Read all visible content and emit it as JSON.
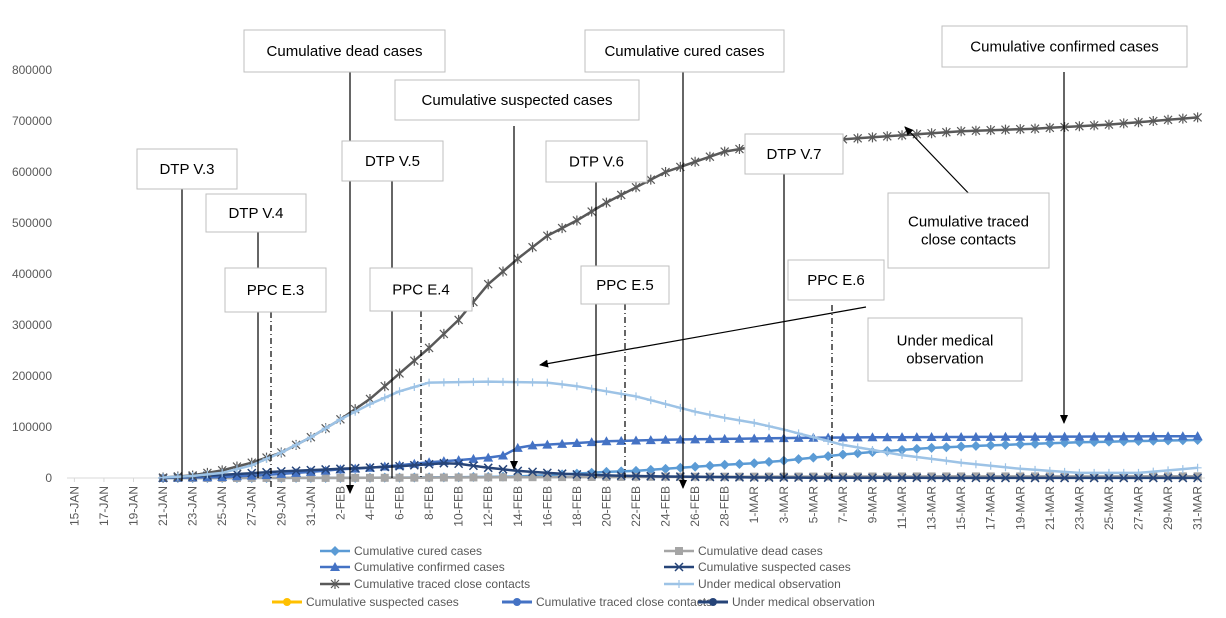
{
  "chart_data": {
    "type": "line",
    "title": "",
    "xlabel": "",
    "ylabel": "",
    "ylim": [
      0,
      800000
    ],
    "yticks": [
      0,
      100000,
      200000,
      300000,
      400000,
      500000,
      600000,
      700000,
      800000
    ],
    "grid": false,
    "x_tick_labels": [
      "15-JAN",
      "17-JAN",
      "19-JAN",
      "21-JAN",
      "23-JAN",
      "25-JAN",
      "27-JAN",
      "29-JAN",
      "31-JAN",
      "2-FEB",
      "4-FEB",
      "6-FEB",
      "8-FEB",
      "10-FEB",
      "12-FEB",
      "14-FEB",
      "16-FEB",
      "18-FEB",
      "20-FEB",
      "22-FEB",
      "24-FEB",
      "26-FEB",
      "28-FEB",
      "1-MAR",
      "3-MAR",
      "5-MAR",
      "7-MAR",
      "9-MAR",
      "11-MAR",
      "13-MAR",
      "15-MAR",
      "17-MAR",
      "19-MAR",
      "21-MAR",
      "23-MAR",
      "25-MAR",
      "27-MAR",
      "29-MAR",
      "31-MAR"
    ],
    "x_start": "15-JAN",
    "x_end": "31-MAR",
    "first_data_day": "21-JAN",
    "series": [
      {
        "name": "Cumulative cured cases",
        "color": "#5B9BD5",
        "marker": "diamond",
        "key_points": [
          [
            6,
            0
          ],
          [
            18,
            200
          ],
          [
            26,
            1500
          ],
          [
            30,
            3000
          ],
          [
            33,
            7000
          ],
          [
            36,
            12000
          ],
          [
            38,
            14000
          ],
          [
            40,
            18000
          ],
          [
            42,
            22000
          ],
          [
            44,
            26000
          ],
          [
            46,
            29000
          ],
          [
            48,
            34000
          ],
          [
            50,
            40000
          ],
          [
            52,
            46000
          ],
          [
            54,
            51000
          ],
          [
            56,
            55000
          ],
          [
            58,
            59000
          ],
          [
            61,
            63000
          ],
          [
            64,
            66000
          ],
          [
            68,
            70000
          ],
          [
            72,
            72500
          ],
          [
            76,
            74500
          ]
        ]
      },
      {
        "name": "Cumulative dead cases",
        "color": "#A5A5A5",
        "marker": "square",
        "key_points": [
          [
            6,
            0
          ],
          [
            20,
            300
          ],
          [
            30,
            1500
          ],
          [
            40,
            2400
          ],
          [
            52,
            2900
          ],
          [
            60,
            3100
          ],
          [
            76,
            3300
          ]
        ]
      },
      {
        "name": "Cumulative confirmed cases",
        "color": "#4472C4",
        "marker": "triangle",
        "key_points": [
          [
            6,
            300
          ],
          [
            10,
            2000
          ],
          [
            13,
            6000
          ],
          [
            16,
            12000
          ],
          [
            18,
            17000
          ],
          [
            20,
            20000
          ],
          [
            22,
            25000
          ],
          [
            24,
            31000
          ],
          [
            26,
            35000
          ],
          [
            28,
            40000
          ],
          [
            29,
            44000
          ],
          [
            30,
            59000
          ],
          [
            31,
            64000
          ],
          [
            33,
            67000
          ],
          [
            36,
            72000
          ],
          [
            40,
            75000
          ],
          [
            45,
            77000
          ],
          [
            50,
            79000
          ],
          [
            55,
            80000
          ],
          [
            76,
            82000
          ]
        ]
      },
      {
        "name": "Cumulative suspected cases",
        "color": "#264478",
        "marker": "x",
        "key_points": [
          [
            6,
            0
          ],
          [
            10,
            6000
          ],
          [
            14,
            13000
          ],
          [
            18,
            18000
          ],
          [
            22,
            23000
          ],
          [
            24,
            27000
          ],
          [
            25,
            29000
          ],
          [
            26,
            28000
          ],
          [
            28,
            20000
          ],
          [
            30,
            14000
          ],
          [
            32,
            10000
          ],
          [
            34,
            7000
          ],
          [
            36,
            5000
          ],
          [
            40,
            3000
          ],
          [
            46,
            1000
          ],
          [
            52,
            500
          ],
          [
            60,
            200
          ],
          [
            76,
            100
          ]
        ]
      },
      {
        "name": "Cumulative traced close contacts",
        "color": "#595959",
        "marker": "star",
        "key_points": [
          [
            6,
            1000
          ],
          [
            8,
            5000
          ],
          [
            10,
            15000
          ],
          [
            12,
            30000
          ],
          [
            14,
            50000
          ],
          [
            16,
            80000
          ],
          [
            18,
            115000
          ],
          [
            20,
            155000
          ],
          [
            22,
            205000
          ],
          [
            24,
            255000
          ],
          [
            26,
            310000
          ],
          [
            28,
            380000
          ],
          [
            30,
            430000
          ],
          [
            32,
            475000
          ],
          [
            34,
            505000
          ],
          [
            36,
            540000
          ],
          [
            38,
            570000
          ],
          [
            40,
            600000
          ],
          [
            42,
            620000
          ],
          [
            44,
            640000
          ],
          [
            46,
            650000
          ],
          [
            50,
            660000
          ],
          [
            55,
            670000
          ],
          [
            60,
            680000
          ],
          [
            65,
            685000
          ],
          [
            70,
            693000
          ],
          [
            76,
            707000
          ]
        ]
      },
      {
        "name": "Under medical observation",
        "color": "#9DC3E6",
        "marker": "plus",
        "key_points": [
          [
            6,
            1000
          ],
          [
            8,
            4000
          ],
          [
            10,
            10000
          ],
          [
            12,
            25000
          ],
          [
            14,
            50000
          ],
          [
            16,
            80000
          ],
          [
            18,
            115000
          ],
          [
            20,
            145000
          ],
          [
            22,
            170000
          ],
          [
            24,
            187000
          ],
          [
            28,
            189000
          ],
          [
            32,
            187000
          ],
          [
            34,
            180000
          ],
          [
            36,
            170000
          ],
          [
            38,
            160000
          ],
          [
            40,
            145000
          ],
          [
            42,
            130000
          ],
          [
            44,
            118000
          ],
          [
            46,
            108000
          ],
          [
            48,
            95000
          ],
          [
            50,
            80000
          ],
          [
            52,
            65000
          ],
          [
            56,
            45000
          ],
          [
            60,
            30000
          ],
          [
            64,
            18000
          ],
          [
            68,
            10000
          ],
          [
            72,
            10000
          ],
          [
            76,
            20000
          ]
        ]
      }
    ],
    "legend_row_extra": [
      "Cumulative suspected cases",
      "Cumulative traced close contacts",
      "Under medical observation"
    ],
    "legend_position": "bottom",
    "annotations": [
      {
        "text": "Cumulative dead cases",
        "line_style": "solid",
        "arrow": true
      },
      {
        "text": "Cumulative cured cases",
        "line_style": "solid",
        "arrow": true
      },
      {
        "text": "Cumulative confirmed cases",
        "line_style": "solid",
        "arrow": true
      },
      {
        "text": "Cumulative suspected cases",
        "line_style": "solid",
        "arrow": true
      },
      {
        "text": "DTP V.3",
        "line_style": "solid",
        "arrow": false
      },
      {
        "text": "DTP V.4",
        "line_style": "solid",
        "arrow": false
      },
      {
        "text": "DTP V.5",
        "line_style": "solid",
        "arrow": false
      },
      {
        "text": "DTP V.6",
        "line_style": "solid",
        "arrow": false
      },
      {
        "text": "DTP V.7",
        "line_style": "solid",
        "arrow": false
      },
      {
        "text": "PPC E.3",
        "line_style": "dashdot",
        "arrow": false
      },
      {
        "text": "PPC E.4",
        "line_style": "dashdot",
        "arrow": false
      },
      {
        "text": "PPC E.5",
        "line_style": "dashdot",
        "arrow": false
      },
      {
        "text": "PPC E.6",
        "line_style": "dashdot",
        "arrow": false
      },
      {
        "text": "Cumulative traced close contacts",
        "line_style": "solid",
        "arrow": true
      },
      {
        "text": "Under medical observation",
        "line_style": "solid",
        "arrow": true
      }
    ]
  }
}
